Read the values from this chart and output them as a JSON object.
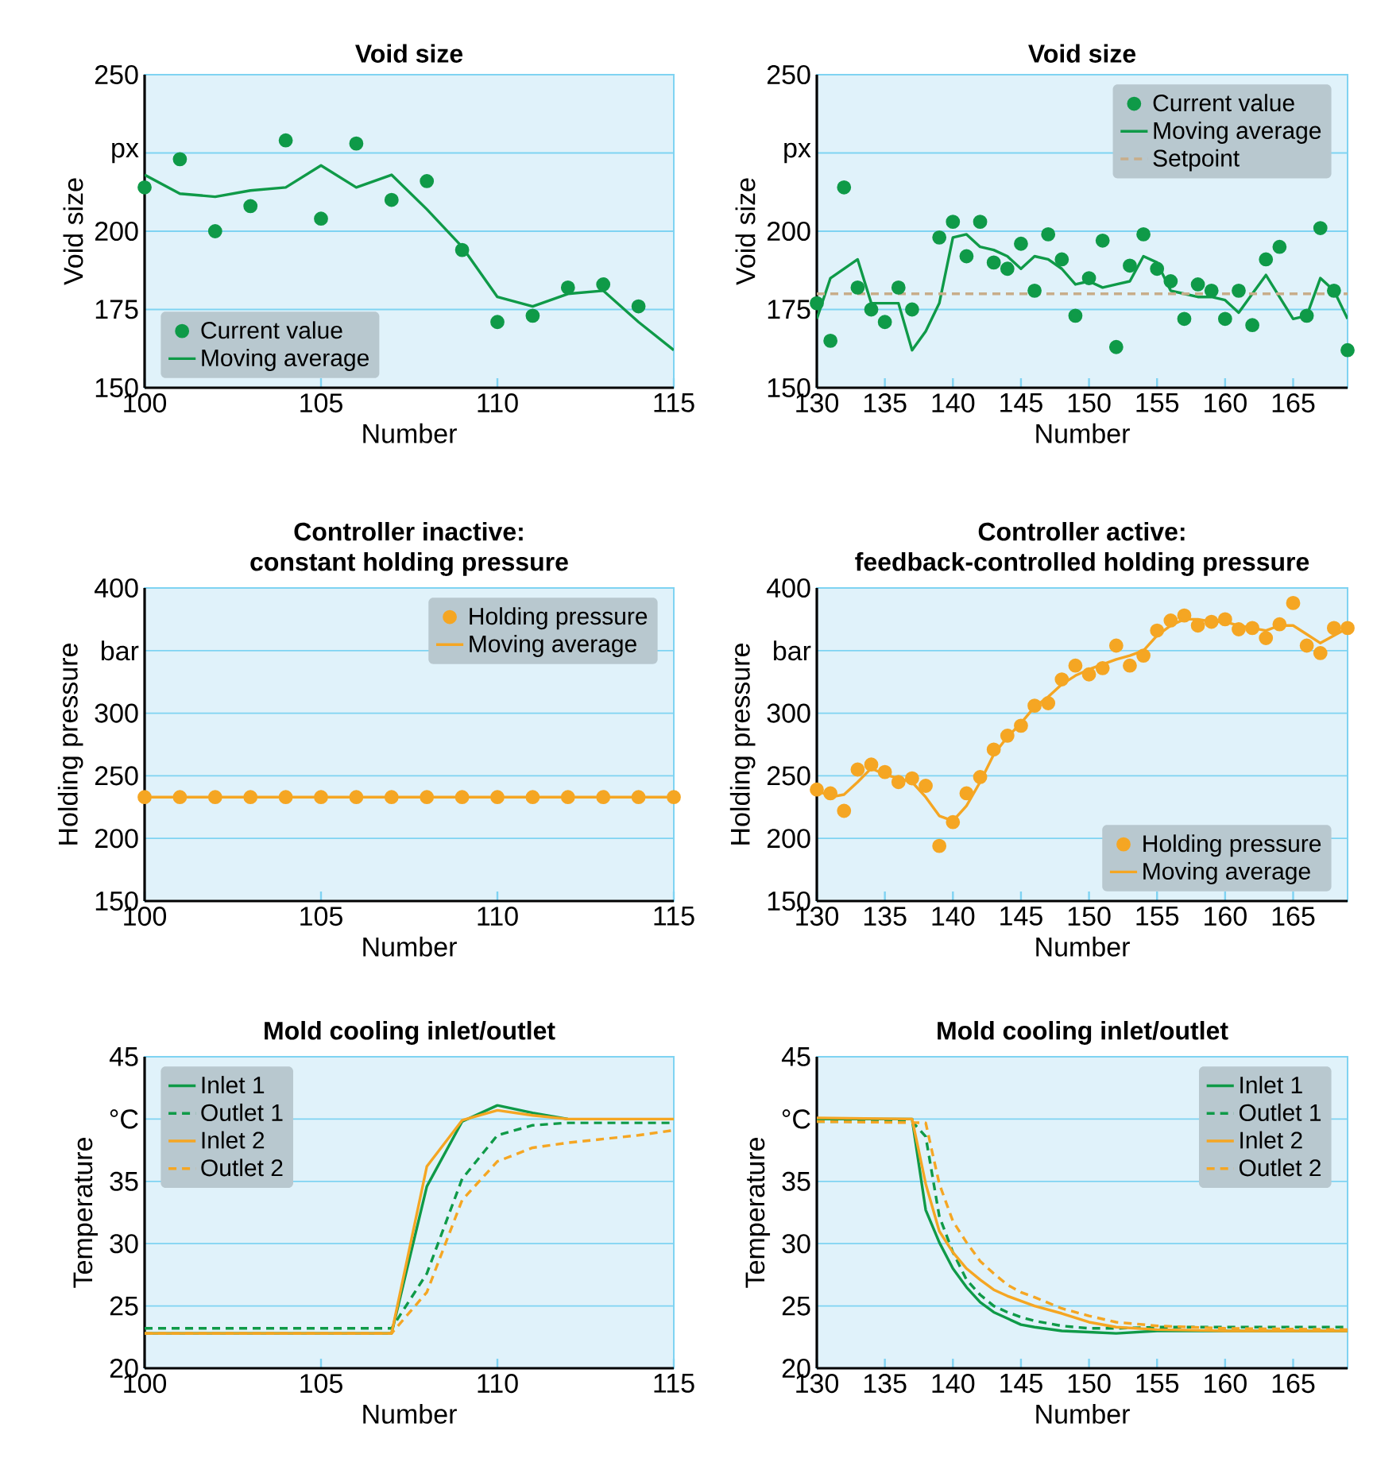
{
  "chart_data": [
    {
      "type": "line",
      "title": "Void size",
      "xlabel": "Number",
      "ylabel": "Void size",
      "xlim": [
        100,
        115
      ],
      "xticks": [
        100,
        105,
        110,
        115
      ],
      "ylim": [
        150,
        250
      ],
      "yticks": [
        150,
        175,
        200,
        {
          "value": 225,
          "label": "px"
        },
        250
      ],
      "grid": "y",
      "legend": "bottom left",
      "series": [
        {
          "name": "Current value",
          "type": "scatter",
          "marker": "circle",
          "color": "#0f9a48",
          "x": [
            100,
            101,
            102,
            103,
            104,
            105,
            106,
            107,
            108,
            109,
            110,
            111,
            112,
            113,
            114
          ],
          "values": [
            214,
            223,
            200,
            208,
            229,
            204,
            228,
            210,
            216,
            194,
            171,
            173,
            182,
            183,
            176
          ]
        },
        {
          "name": "Moving average",
          "type": "line",
          "color": "#0f9a48",
          "x": [
            100,
            101,
            102,
            103,
            104,
            105,
            106,
            107,
            108,
            109,
            110,
            111,
            112,
            113,
            114,
            115
          ],
          "values": [
            218,
            212,
            211,
            213,
            214,
            221,
            214,
            218,
            207,
            195,
            179,
            176,
            180,
            181,
            171,
            162
          ]
        }
      ]
    },
    {
      "type": "line",
      "title": "Void size",
      "xlabel": "Number",
      "ylabel": "Void size",
      "xlim": [
        130,
        169
      ],
      "xticks": [
        130,
        135,
        140,
        145,
        150,
        155,
        160,
        165
      ],
      "ylim": [
        150,
        250
      ],
      "yticks": [
        150,
        175,
        200,
        {
          "value": 225,
          "label": "px"
        },
        250
      ],
      "grid": "y",
      "legend": "top right",
      "series": [
        {
          "name": "Current value",
          "type": "scatter",
          "marker": "circle",
          "color": "#0f9a48",
          "x": [
            130,
            131,
            132,
            133,
            134,
            135,
            136,
            137,
            139,
            140,
            141,
            142,
            143,
            144,
            145,
            146,
            147,
            148,
            149,
            150,
            151,
            152,
            153,
            154,
            155,
            156,
            157,
            158,
            159,
            160,
            161,
            162,
            163,
            164,
            166,
            167,
            168,
            169
          ],
          "values": [
            177,
            165,
            214,
            182,
            175,
            171,
            182,
            175,
            198,
            203,
            192,
            203,
            190,
            188,
            196,
            181,
            199,
            191,
            173,
            185,
            197,
            163,
            189,
            199,
            188,
            184,
            172,
            183,
            181,
            172,
            181,
            170,
            191,
            195,
            173,
            201,
            181,
            162
          ]
        },
        {
          "name": "Moving average",
          "type": "line",
          "color": "#0f9a48",
          "x": [
            130,
            131,
            132,
            133,
            134,
            135,
            136,
            137,
            138,
            139,
            140,
            141,
            142,
            143,
            144,
            145,
            146,
            147,
            148,
            149,
            150,
            151,
            152,
            153,
            154,
            155,
            156,
            157,
            158,
            159,
            160,
            161,
            162,
            163,
            164,
            165,
            166,
            167,
            168,
            169
          ],
          "values": [
            172,
            185,
            188,
            191,
            177,
            177,
            177,
            162,
            168,
            177,
            198,
            199,
            195,
            194,
            192,
            188,
            192,
            191,
            188,
            183,
            184,
            182,
            183,
            184,
            192,
            190,
            181,
            180,
            179,
            179,
            178,
            174,
            180,
            186,
            179,
            172,
            173,
            185,
            181,
            172
          ]
        },
        {
          "name": "Setpoint",
          "type": "line",
          "line_style": "dashed",
          "color": "#c8ad8a",
          "x": [
            130,
            169
          ],
          "values": [
            180,
            180
          ]
        }
      ]
    },
    {
      "type": "line",
      "title": "Controller inactive:",
      "subtitle": "constant holding pressure",
      "xlabel": "Number",
      "ylabel": "Holding pressure",
      "xlim": [
        100,
        115
      ],
      "xticks": [
        100,
        105,
        110,
        115
      ],
      "ylim": [
        150,
        400
      ],
      "yticks": [
        150,
        200,
        250,
        300,
        {
          "value": 350,
          "label": "bar"
        },
        400
      ],
      "grid": "y",
      "legend": "top right",
      "series": [
        {
          "name": "Holding pressure",
          "type": "scatter",
          "marker": "circle",
          "color": "#f5a623",
          "x": [
            100,
            101,
            102,
            103,
            104,
            105,
            106,
            107,
            108,
            109,
            110,
            111,
            112,
            113,
            114,
            115
          ],
          "values": [
            233,
            233,
            233,
            233,
            233,
            233,
            233,
            233,
            233,
            233,
            233,
            233,
            233,
            233,
            233,
            233
          ]
        },
        {
          "name": "Moving average",
          "type": "line",
          "color": "#f5a623",
          "x": [
            100,
            101,
            102,
            103,
            104,
            105,
            106,
            107,
            108,
            109,
            110,
            111,
            112,
            113,
            114,
            115
          ],
          "values": [
            233,
            233,
            233,
            233,
            233,
            233,
            233,
            233,
            233,
            233,
            233,
            233,
            233,
            233,
            233,
            233
          ]
        }
      ]
    },
    {
      "type": "line",
      "title": "Controller active:",
      "subtitle": "feedback-controlled holding pressure",
      "xlabel": "Number",
      "ylabel": "Holding pressure",
      "xlim": [
        130,
        169
      ],
      "xticks": [
        130,
        135,
        140,
        145,
        150,
        155,
        160,
        165
      ],
      "ylim": [
        150,
        400
      ],
      "yticks": [
        150,
        200,
        250,
        300,
        {
          "value": 350,
          "label": "bar"
        },
        400
      ],
      "grid": "y",
      "legend": "bottom right",
      "series": [
        {
          "name": "Holding pressure",
          "type": "scatter",
          "marker": "circle",
          "color": "#f5a623",
          "x": [
            130,
            131,
            132,
            133,
            134,
            135,
            136,
            137,
            138,
            139,
            140,
            141,
            142,
            143,
            144,
            145,
            146,
            147,
            148,
            149,
            150,
            151,
            152,
            153,
            154,
            155,
            156,
            157,
            158,
            159,
            160,
            161,
            162,
            163,
            164,
            165,
            166,
            167,
            168,
            169
          ],
          "values": [
            239,
            236,
            222,
            255,
            259,
            253,
            245,
            248,
            242,
            194,
            213,
            236,
            249,
            271,
            282,
            290,
            306,
            308,
            327,
            338,
            331,
            336,
            354,
            338,
            346,
            366,
            374,
            378,
            370,
            373,
            375,
            367,
            368,
            360,
            371,
            388,
            354,
            348,
            368,
            368
          ]
        },
        {
          "name": "Moving average",
          "type": "line",
          "color": "#f5a623",
          "x": [
            130,
            131,
            132,
            133,
            134,
            135,
            136,
            137,
            138,
            139,
            140,
            141,
            142,
            143,
            144,
            145,
            146,
            147,
            148,
            149,
            150,
            151,
            152,
            153,
            154,
            155,
            156,
            157,
            158,
            159,
            160,
            161,
            162,
            163,
            164,
            165,
            166,
            167,
            168,
            169
          ],
          "values": [
            239,
            233,
            235,
            245,
            256,
            251,
            248,
            245,
            233,
            218,
            214,
            226,
            245,
            267,
            281,
            292,
            305,
            313,
            323,
            330,
            335,
            339,
            343,
            346,
            350,
            362,
            370,
            375,
            375,
            373,
            373,
            370,
            368,
            366,
            370,
            370,
            363,
            356,
            362,
            368
          ]
        }
      ]
    },
    {
      "type": "line",
      "title": "Mold cooling inlet/outlet",
      "xlabel": "Number",
      "ylabel": "Temperature",
      "xlim": [
        100,
        115
      ],
      "xticks": [
        100,
        105,
        110,
        115
      ],
      "ylim": [
        20,
        45
      ],
      "yticks": [
        20,
        25,
        30,
        35,
        {
          "value": 40,
          "label": "°C"
        },
        45
      ],
      "grid": "y",
      "legend": "top left",
      "series": [
        {
          "name": "Inlet 1",
          "type": "line",
          "color": "#0f9a48",
          "x": [
            100,
            107,
            108,
            109,
            110,
            111,
            112
          ],
          "values": [
            22.8,
            22.8,
            34.6,
            39.8,
            41.1,
            40.5,
            40
          ]
        },
        {
          "name": "Outlet 1",
          "type": "line",
          "line_style": "dashed",
          "color": "#0f9a48",
          "x": [
            100,
            107,
            108,
            109,
            110,
            111,
            112,
            115
          ],
          "values": [
            23.2,
            23.2,
            27.6,
            35.2,
            38.7,
            39.5,
            39.7,
            39.7
          ]
        },
        {
          "name": "Inlet 2",
          "type": "line",
          "color": "#f5a623",
          "x": [
            100,
            107,
            108,
            109,
            110,
            111,
            112,
            115
          ],
          "values": [
            22.8,
            22.8,
            36.2,
            39.9,
            40.7,
            40.3,
            40,
            40
          ]
        },
        {
          "name": "Outlet 2",
          "type": "line",
          "line_style": "dashed",
          "color": "#f5a623",
          "x": [
            100,
            107,
            108,
            109,
            110,
            111,
            112,
            113,
            114,
            115
          ],
          "values": [
            22.8,
            22.8,
            26.1,
            33.5,
            36.6,
            37.7,
            38.1,
            38.4,
            38.7,
            39.1
          ]
        }
      ]
    },
    {
      "type": "line",
      "title": "Mold cooling inlet/outlet",
      "xlabel": "Number",
      "ylabel": "Temperature",
      "xlim": [
        130,
        169
      ],
      "xticks": [
        130,
        135,
        140,
        145,
        150,
        155,
        160,
        165
      ],
      "ylim": [
        20,
        45
      ],
      "yticks": [
        20,
        25,
        30,
        35,
        {
          "value": 40,
          "label": "°C"
        },
        45
      ],
      "grid": "y",
      "legend": "top right",
      "series": [
        {
          "name": "Inlet 1",
          "type": "line",
          "color": "#0f9a48",
          "x": [
            130,
            137,
            138,
            139,
            140,
            141,
            142,
            143,
            144,
            145,
            146,
            148,
            150,
            152,
            155,
            160,
            169
          ],
          "values": [
            40,
            40,
            32.7,
            30.1,
            28,
            26.5,
            25.3,
            24.5,
            24,
            23.5,
            23.3,
            23,
            22.9,
            22.8,
            23,
            23,
            23
          ]
        },
        {
          "name": "Outlet 1",
          "type": "line",
          "line_style": "dashed",
          "color": "#0f9a48",
          "x": [
            130,
            137,
            138,
            139,
            140,
            141,
            142,
            143,
            144,
            145,
            146,
            148,
            150,
            152,
            155,
            160,
            169
          ],
          "values": [
            39.8,
            39.8,
            38.6,
            32.2,
            29.3,
            27.1,
            25.9,
            25,
            24.5,
            24.1,
            23.8,
            23.4,
            23.2,
            23.2,
            23.3,
            23.3,
            23.3
          ]
        },
        {
          "name": "Inlet 2",
          "type": "line",
          "color": "#f5a623",
          "x": [
            130,
            137,
            138,
            139,
            140,
            141,
            142,
            143,
            144,
            145,
            146,
            148,
            150,
            152,
            155,
            160,
            169
          ],
          "values": [
            40.1,
            40,
            34.8,
            31,
            29.3,
            28,
            27.1,
            26.3,
            25.8,
            25.4,
            25,
            24.4,
            23.7,
            23.3,
            23.1,
            23,
            23
          ]
        },
        {
          "name": "Outlet 2",
          "type": "line",
          "line_style": "dashed",
          "color": "#f5a623",
          "x": [
            130,
            138,
            139,
            140,
            141,
            142,
            143,
            144,
            145,
            146,
            148,
            150,
            152,
            155,
            160,
            169
          ],
          "values": [
            39.8,
            39.7,
            34.8,
            31.8,
            30.1,
            28.6,
            27.6,
            26.7,
            26.1,
            25.7,
            24.8,
            24.2,
            23.7,
            23.4,
            23.2,
            23.1
          ]
        }
      ]
    }
  ]
}
